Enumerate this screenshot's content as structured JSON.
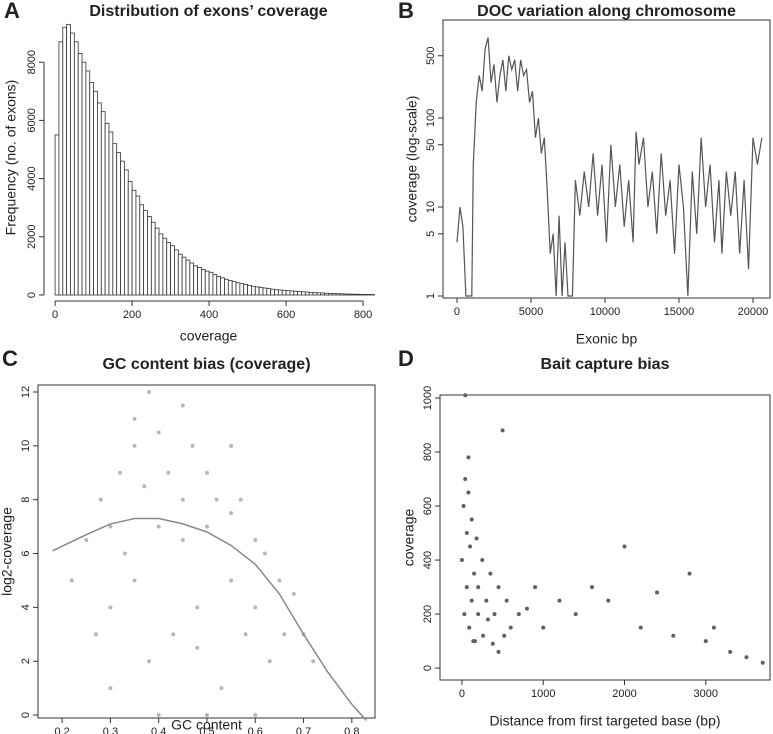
{
  "chart_data": [
    {
      "type": "histogram",
      "label": "A",
      "title": "Distribution of exons’ coverage",
      "x_label": "coverage",
      "y_label": "Frequency (no. of exons)",
      "bins": [
        0,
        10,
        20,
        30,
        40,
        50,
        60,
        70,
        80,
        90,
        100,
        110,
        120,
        130,
        140,
        150,
        160,
        170,
        180,
        190,
        200,
        210,
        220,
        230,
        240,
        250,
        260,
        270,
        280,
        290,
        300,
        310,
        320,
        330,
        340,
        350,
        360,
        370,
        380,
        390,
        400,
        410,
        420,
        430,
        440,
        450,
        460,
        470,
        480,
        490,
        500,
        510,
        520,
        530,
        540,
        550,
        560,
        570,
        580,
        590,
        600,
        610,
        620,
        630,
        640,
        650,
        660,
        670,
        680,
        690,
        700,
        710,
        720,
        730,
        740,
        750,
        760,
        770,
        780,
        790,
        800,
        810,
        820,
        830
      ],
      "counts": [
        5500,
        8700,
        9200,
        9300,
        9000,
        8700,
        8300,
        8000,
        7700,
        7300,
        7000,
        6600,
        6300,
        5900,
        5600,
        5200,
        4900,
        4600,
        4300,
        3900,
        3600,
        3400,
        3100,
        2900,
        2700,
        2500,
        2300,
        2100,
        1950,
        1800,
        1700,
        1550,
        1400,
        1300,
        1200,
        1100,
        1000,
        950,
        880,
        820,
        780,
        700,
        640,
        590,
        540,
        500,
        460,
        420,
        390,
        360,
        330,
        300,
        280,
        260,
        240,
        220,
        200,
        180,
        170,
        160,
        150,
        140,
        130,
        120,
        110,
        100,
        90,
        80,
        75,
        70,
        60,
        55,
        50,
        45,
        40,
        35,
        30,
        28,
        25,
        22,
        20,
        18,
        15
      ],
      "color": "#ffffff",
      "edge_color": "#333333",
      "xlim": [
        -34,
        831
      ],
      "ylim": [
        0,
        9450
      ],
      "xticks": [
        0,
        200,
        400,
        600,
        800
      ],
      "yticks": [
        0,
        2000,
        4000,
        6000,
        8000
      ],
      "box": false
    },
    {
      "type": "line",
      "label": "B",
      "title": "DOC variation along chromosome",
      "x_label": "Exonic bp",
      "y_label": "coverage (log-scale)",
      "log_y": true,
      "color": "#555555",
      "x": [
        0,
        200,
        400,
        600,
        1000,
        1100,
        1300,
        1500,
        1700,
        1900,
        2100,
        2300,
        2500,
        2700,
        2900,
        3100,
        3300,
        3500,
        3700,
        3900,
        4100,
        4300,
        4500,
        4700,
        4900,
        5100,
        5300,
        5500,
        5700,
        5900,
        6100,
        6300,
        6500,
        6700,
        6900,
        7100,
        7300,
        7500,
        7800,
        8000,
        8300,
        8600,
        8900,
        9200,
        9500,
        9800,
        10100,
        10400,
        10700,
        11000,
        11300,
        11600,
        11900,
        12100,
        12300,
        12600,
        12900,
        13200,
        13500,
        13800,
        14100,
        14400,
        14700,
        15000,
        15300,
        15600,
        15900,
        16200,
        16500,
        16800,
        17100,
        17400,
        17700,
        17900,
        18200,
        18500,
        18800,
        19100,
        19400,
        19700,
        20000,
        20300,
        20600
      ],
      "values": [
        4,
        10,
        6,
        1,
        1,
        30,
        150,
        300,
        200,
        600,
        800,
        250,
        400,
        150,
        300,
        450,
        200,
        500,
        350,
        450,
        200,
        450,
        300,
        350,
        150,
        200,
        60,
        100,
        40,
        60,
        15,
        3,
        5,
        1,
        8,
        1,
        4,
        1,
        1,
        20,
        8,
        25,
        10,
        40,
        8,
        30,
        4,
        50,
        10,
        30,
        6,
        20,
        4,
        70,
        30,
        60,
        10,
        25,
        5,
        40,
        8,
        20,
        3,
        30,
        10,
        1,
        25,
        5,
        60,
        10,
        30,
        4,
        20,
        3,
        25,
        8,
        25,
        3,
        20,
        2,
        60,
        30,
        60
      ],
      "xlim": [
        -946,
        21150
      ],
      "ylim": [
        0.95,
        1260
      ],
      "xticks": [
        0,
        5000,
        10000,
        15000,
        20000
      ],
      "yticks": [
        1,
        5,
        10,
        50,
        100,
        500
      ],
      "box": true
    },
    {
      "type": "scatter",
      "label": "C",
      "title": "GC content bias (coverage)",
      "x_label": "GC content",
      "y_label": "log2-coverage",
      "color": "#b8b8b8",
      "x": [
        0.22,
        0.25,
        0.27,
        0.28,
        0.3,
        0.3,
        0.32,
        0.33,
        0.35,
        0.35,
        0.37,
        0.38,
        0.4,
        0.4,
        0.42,
        0.43,
        0.45,
        0.45,
        0.47,
        0.48,
        0.5,
        0.5,
        0.52,
        0.53,
        0.55,
        0.55,
        0.57,
        0.58,
        0.6,
        0.6,
        0.62,
        0.63,
        0.65,
        0.66,
        0.68,
        0.7,
        0.72,
        0.3,
        0.4,
        0.5,
        0.6,
        0.35,
        0.45,
        0.55,
        0.38,
        0.48
      ],
      "values": [
        5,
        6.5,
        3,
        8,
        7,
        4,
        9,
        6,
        10,
        5,
        8.5,
        2,
        10.5,
        7,
        9,
        3,
        8,
        6.5,
        10,
        4,
        9,
        7,
        8,
        1,
        7.5,
        5,
        8,
        3,
        6.5,
        4,
        6,
        2,
        5,
        3,
        4.5,
        3,
        2,
        1,
        0,
        0,
        0,
        11,
        11.5,
        10,
        12,
        2.5
      ],
      "trend": {
        "color": "#888888",
        "x": [
          0.18,
          0.25,
          0.3,
          0.35,
          0.4,
          0.45,
          0.5,
          0.55,
          0.6,
          0.65,
          0.7,
          0.75,
          0.8,
          0.83
        ],
        "values": [
          6.1,
          6.7,
          7.1,
          7.3,
          7.3,
          7.1,
          6.8,
          6.3,
          5.6,
          4.5,
          3.0,
          1.6,
          0.4,
          -0.2
        ]
      },
      "xlim": [
        0.15,
        0.848
      ],
      "ylim": [
        -0.11,
        12.26
      ],
      "xticks": [
        0.2,
        0.3,
        0.4,
        0.5,
        0.6,
        0.7,
        0.8
      ],
      "yticks": [
        0,
        2,
        4,
        6,
        8,
        10,
        12
      ],
      "box": true
    },
    {
      "type": "scatter",
      "label": "D",
      "title": "Bait capture bias",
      "x_label": "Distance from first targeted base (bp)",
      "y_label": "coverage",
      "color": "#606060",
      "x": [
        0,
        20,
        40,
        60,
        80,
        100,
        120,
        150,
        180,
        200,
        250,
        300,
        350,
        400,
        450,
        500,
        550,
        600,
        700,
        800,
        900,
        1000,
        1200,
        1400,
        1600,
        1800,
        2000,
        2200,
        2400,
        2600,
        2800,
        3000,
        3100,
        3300,
        3500,
        3700,
        30,
        60,
        90,
        120,
        160,
        200,
        260,
        320,
        380,
        450,
        520,
        40,
        80,
        140
      ],
      "values": [
        400,
        600,
        700,
        500,
        650,
        450,
        550,
        350,
        480,
        300,
        400,
        250,
        350,
        200,
        300,
        880,
        250,
        150,
        200,
        220,
        300,
        150,
        250,
        200,
        300,
        250,
        450,
        150,
        280,
        120,
        350,
        100,
        150,
        60,
        40,
        20,
        200,
        300,
        150,
        250,
        100,
        200,
        120,
        180,
        90,
        60,
        120,
        1010,
        780,
        100
      ],
      "xlim": [
        -270,
        3790
      ],
      "ylim": [
        -44,
        1011
      ],
      "xticks": [
        0,
        1000,
        2000,
        3000
      ],
      "yticks": [
        0,
        200,
        400,
        600,
        800,
        1000
      ],
      "box": true
    }
  ]
}
